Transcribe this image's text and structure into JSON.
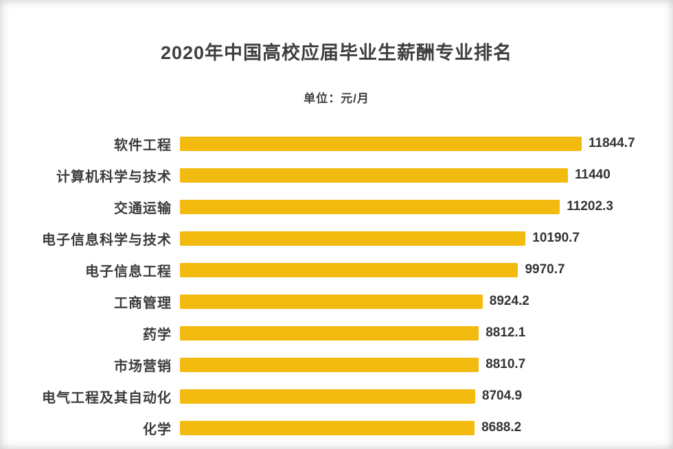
{
  "header": {
    "title": "2020年中国高校应届毕业生薪酬专业排名",
    "subtitle": "单位：元/月"
  },
  "chart_data": {
    "type": "bar",
    "orientation": "horizontal",
    "title": "2020年中国高校应届毕业生薪酬专业排名",
    "subtitle": "单位：元/月",
    "xlabel": "",
    "ylabel": "",
    "categories": [
      "软件工程",
      "计算机科学与技术",
      "交通运输",
      "电子信息科学与技术",
      "电子信息工程",
      "工商管理",
      "药学",
      "市场营销",
      "电气工程及其自动化",
      "化学"
    ],
    "values": [
      11844.7,
      11440,
      11202.3,
      10190.7,
      9970.7,
      8924.2,
      8812.1,
      8810.7,
      8704.9,
      8688.2
    ],
    "value_labels": [
      "11844.7",
      "11440",
      "11202.3",
      "10190.7",
      "9970.7",
      "8924.2",
      "8812.1",
      "8810.7",
      "8704.9",
      "8688.2"
    ],
    "xlim": [
      0,
      11844.7
    ],
    "grid": false,
    "legend": false,
    "bar_color": "#F3BA10",
    "text_color": "#3C3C3C"
  }
}
